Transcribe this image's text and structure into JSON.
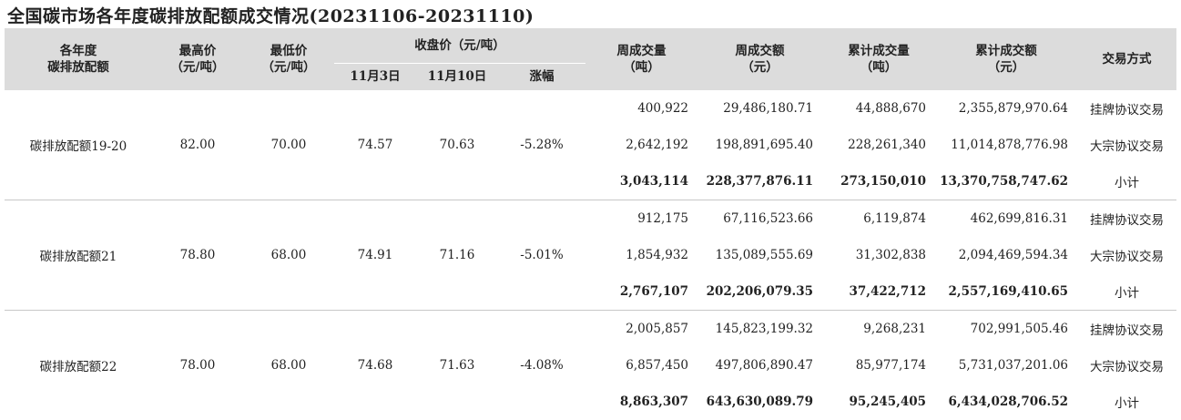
{
  "title": "全国碳市场各年度碳排放配额成交情况(20231106-20231110)",
  "headers": {
    "allowance": "各年度\n碳排放配额",
    "high": "最高价\n（元/吨）",
    "low": "最低价\n（元/吨）",
    "close_group": "收盘价（元/吨）",
    "close_nov3": "11月3日",
    "close_nov10": "11月10日",
    "change": "涨幅",
    "week_volume": "周成交量\n（吨）",
    "week_turnover": "周成交额\n（元）",
    "cum_volume": "累计成交量\n（吨）",
    "cum_turnover": "累计成交额\n（元）",
    "method": "交易方式"
  },
  "groups": [
    {
      "name": "碳排放配额19-20",
      "high": "82.00",
      "low": "70.00",
      "nov3": "74.57",
      "nov10": "70.63",
      "change": "-5.28%",
      "rows": [
        {
          "week_volume": "400,922",
          "week_turnover": "29,486,180.71",
          "cum_volume": "44,888,670",
          "cum_turnover": "2,355,879,970.64",
          "method": "挂牌协议交易"
        },
        {
          "week_volume": "2,642,192",
          "week_turnover": "198,891,695.40",
          "cum_volume": "228,261,340",
          "cum_turnover": "11,014,878,776.98",
          "method": "大宗协议交易"
        },
        {
          "week_volume": "3,043,114",
          "week_turnover": "228,377,876.11",
          "cum_volume": "273,150,010",
          "cum_turnover": "13,370,758,747.62",
          "method": "小计"
        }
      ]
    },
    {
      "name": "碳排放配额21",
      "high": "78.80",
      "low": "68.00",
      "nov3": "74.91",
      "nov10": "71.16",
      "change": "-5.01%",
      "rows": [
        {
          "week_volume": "912,175",
          "week_turnover": "67,116,523.66",
          "cum_volume": "6,119,874",
          "cum_turnover": "462,699,816.31",
          "method": "挂牌协议交易"
        },
        {
          "week_volume": "1,854,932",
          "week_turnover": "135,089,555.69",
          "cum_volume": "31,302,838",
          "cum_turnover": "2,094,469,594.34",
          "method": "大宗协议交易"
        },
        {
          "week_volume": "2,767,107",
          "week_turnover": "202,206,079.35",
          "cum_volume": "37,422,712",
          "cum_turnover": "2,557,169,410.65",
          "method": "小计"
        }
      ]
    },
    {
      "name": "碳排放配额22",
      "high": "78.00",
      "low": "68.00",
      "nov3": "74.68",
      "nov10": "71.63",
      "change": "-4.08%",
      "rows": [
        {
          "week_volume": "2,005,857",
          "week_turnover": "145,823,199.32",
          "cum_volume": "9,268,231",
          "cum_turnover": "702,991,505.46",
          "method": "挂牌协议交易"
        },
        {
          "week_volume": "6,857,450",
          "week_turnover": "497,806,890.47",
          "cum_volume": "85,977,174",
          "cum_turnover": "5,731,037,201.06",
          "method": "大宗协议交易"
        },
        {
          "week_volume": "8,863,307",
          "week_turnover": "643,630,089.79",
          "cum_volume": "95,245,405",
          "cum_turnover": "6,434,028,706.52",
          "method": "小计"
        }
      ]
    }
  ]
}
